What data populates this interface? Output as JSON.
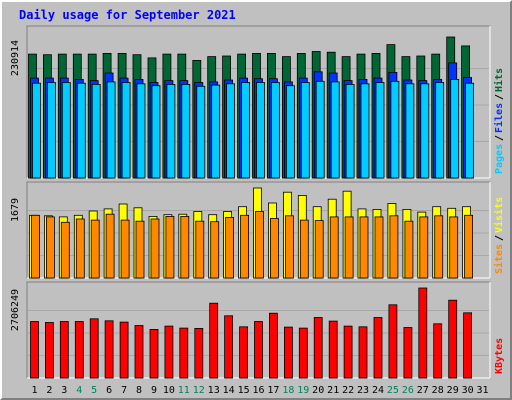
{
  "chart_data": {
    "type": "bar",
    "title": "Daily usage for September 2021",
    "days": [
      "1",
      "2",
      "3",
      "4",
      "5",
      "6",
      "7",
      "8",
      "9",
      "10",
      "11",
      "12",
      "13",
      "14",
      "15",
      "16",
      "17",
      "18",
      "19",
      "20",
      "21",
      "22",
      "23",
      "24",
      "25",
      "26",
      "27",
      "28",
      "29",
      "30",
      "31"
    ],
    "weekend_days": [
      "4",
      "5",
      "11",
      "12",
      "18",
      "19",
      "25",
      "26"
    ],
    "panels": [
      {
        "id": "hits",
        "max_label": "230914",
        "ymax": 230914,
        "ylabels": [
          "Pages",
          "Files",
          "Hits"
        ],
        "series": [
          {
            "name": "Hits",
            "color": "#006633",
            "values": [
              196000,
              195000,
              196000,
              196000,
              196000,
              197000,
              197000,
              195000,
              190000,
              196000,
              196000,
              186000,
              192000,
              193000,
              196000,
              197000,
              197000,
              192000,
              197000,
              200000,
              199000,
              192000,
              196000,
              197000,
              211000,
              192000,
              193000,
              196000,
              223000,
              209000,
              0
            ]
          },
          {
            "name": "Files",
            "color": "#0033ff",
            "values": [
              158000,
              158000,
              158000,
              156000,
              154000,
              166000,
              158000,
              156000,
              151000,
              154000,
              154000,
              151000,
              152000,
              155000,
              158000,
              157000,
              157000,
              152000,
              158000,
              168000,
              166000,
              154000,
              156000,
              158000,
              167000,
              155000,
              154000,
              156000,
              182000,
              159000,
              0
            ]
          },
          {
            "name": "Pages",
            "color": "#00ccff",
            "values": [
              150000,
              151000,
              151000,
              150000,
              148000,
              152000,
              151000,
              149000,
              146000,
              148000,
              148000,
              145000,
              147000,
              149000,
              151000,
              151000,
              151000,
              146000,
              151000,
              153000,
              152000,
              148000,
              149000,
              151000,
              153000,
              149000,
              149000,
              151000,
              156000,
              150000,
              0
            ]
          }
        ]
      },
      {
        "id": "visits",
        "max_label": "1679",
        "ymax": 1679,
        "ylabels": [
          "Sites",
          "Visits"
        ],
        "series": [
          {
            "name": "Visits",
            "color": "#ffff00",
            "values": [
              1170,
              1160,
              1140,
              1170,
              1250,
              1290,
              1380,
              1310,
              1150,
              1180,
              1190,
              1240,
              1180,
              1240,
              1330,
              1679,
              1400,
              1600,
              1540,
              1330,
              1470,
              1620,
              1290,
              1280,
              1390,
              1280,
              1230,
              1330,
              1300,
              1330,
              0
            ]
          },
          {
            "name": "Sites",
            "color": "#ff8800",
            "values": [
              1170,
              1140,
              1040,
              1100,
              1080,
              1190,
              1080,
              1060,
              1100,
              1150,
              1150,
              1060,
              1050,
              1130,
              1170,
              1240,
              1110,
              1160,
              1080,
              1070,
              1140,
              1140,
              1140,
              1140,
              1160,
              1060,
              1140,
              1160,
              1140,
              1170,
              0
            ]
          }
        ]
      },
      {
        "id": "kbytes",
        "max_label": "2706249",
        "ymax": 2706249,
        "ylabels": [
          "KBytes"
        ],
        "series": [
          {
            "name": "KBytes",
            "color": "#ff0000",
            "values": [
              1700000,
              1670000,
              1700000,
              1700000,
              1780000,
              1720000,
              1680000,
              1580000,
              1460000,
              1560000,
              1500000,
              1490000,
              2250000,
              1870000,
              1540000,
              1700000,
              1950000,
              1530000,
              1500000,
              1820000,
              1710000,
              1560000,
              1540000,
              1820000,
              2200000,
              1520000,
              2706249,
              1630000,
              2340000,
              1960000,
              0
            ]
          }
        ]
      }
    ],
    "colors": {
      "background": "#c0c0c0",
      "title": "#0000ff",
      "weekday_label": "#000000",
      "weekend_label": "#00805c"
    }
  }
}
